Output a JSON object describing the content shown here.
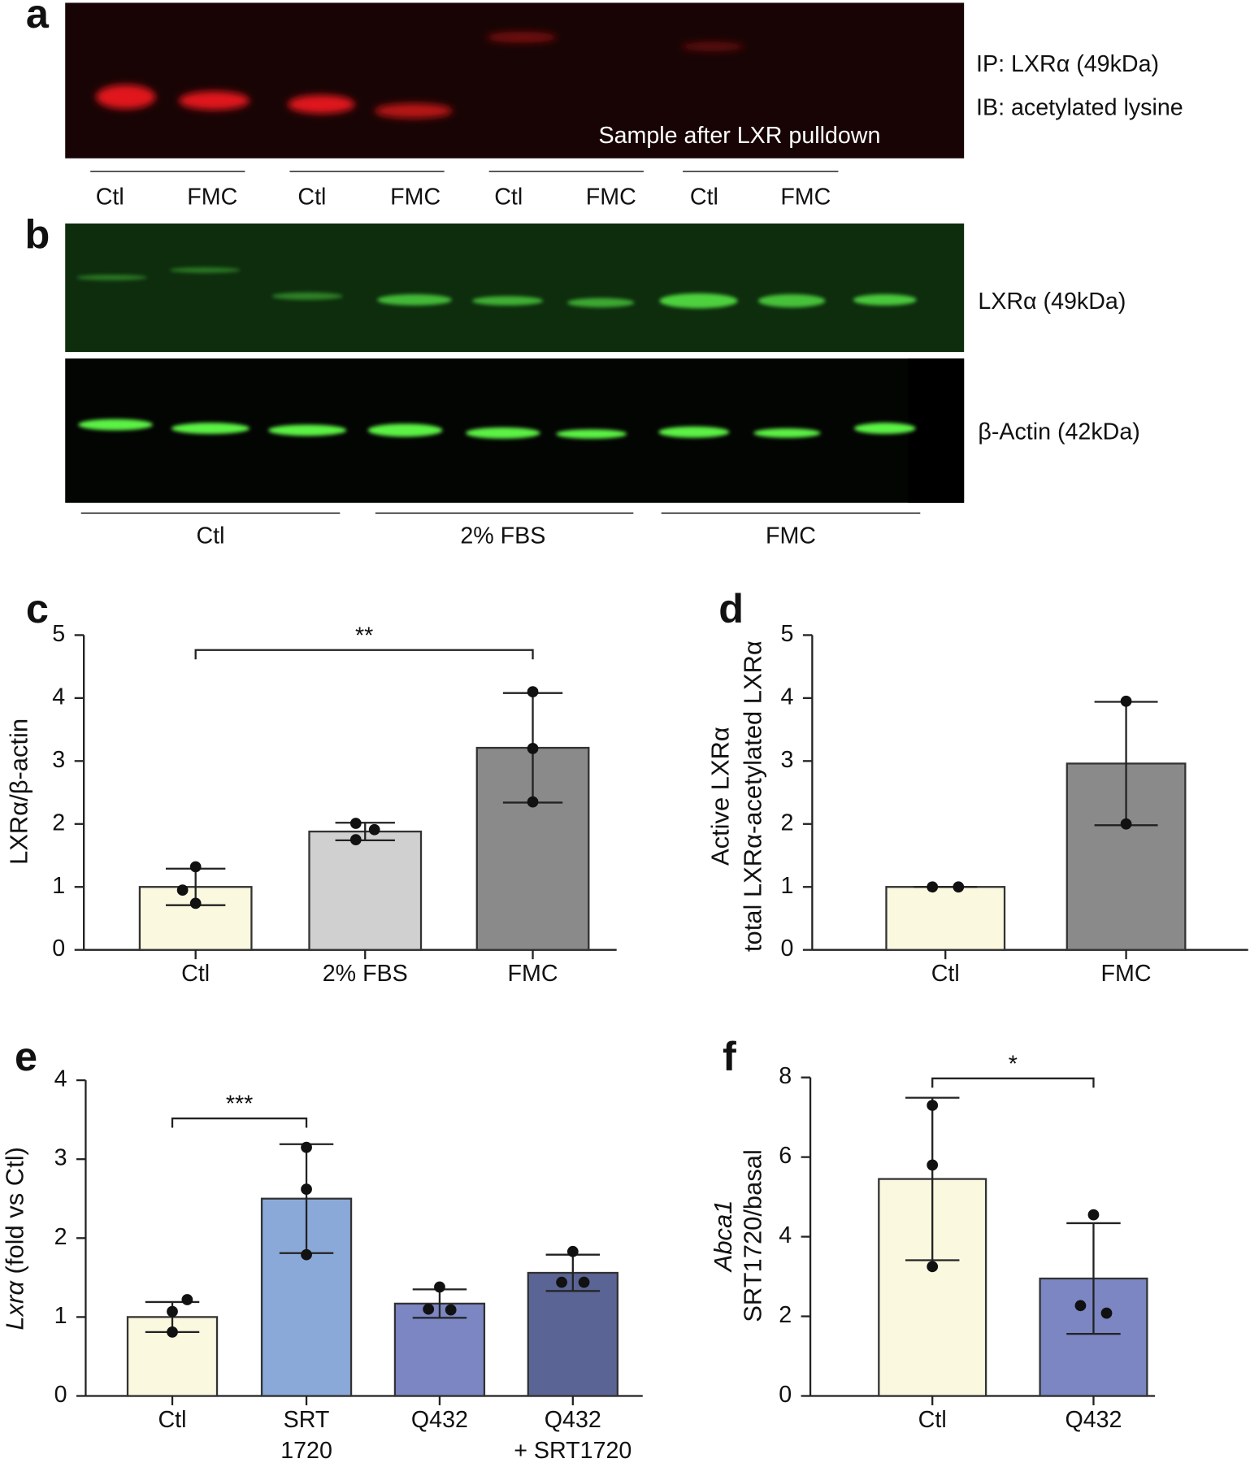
{
  "blot_a": {
    "label": "a",
    "bands": [
      "IP: LXRα (49kDa)",
      "IB: acetylated lysine"
    ],
    "note": "Sample after LXR pulldown",
    "lanes": [
      "Ctl",
      "FMC",
      "Ctl",
      "FMC",
      "Ctl",
      "FMC",
      "Ctl",
      "FMC"
    ]
  },
  "blot_b": {
    "label": "b",
    "bands": [
      "LXRα (49kDa)",
      "β-Actin (42kDa)"
    ],
    "groups": [
      "Ctl",
      "2% FBS",
      "FMC"
    ]
  },
  "chart_data": [
    {
      "type": "bar",
      "label": "c",
      "ylabel": [
        "LXRα/β-actin"
      ],
      "categories": [
        [
          "Ctl"
        ],
        [
          "2% FBS"
        ],
        [
          "FMC"
        ]
      ],
      "values": [
        1.0,
        1.88,
        3.21
      ],
      "errors": [
        0.29,
        0.14,
        0.87
      ],
      "points": [
        [
          1.32,
          0.95,
          0.74
        ],
        [
          2.01,
          1.91,
          1.75
        ],
        [
          4.1,
          3.2,
          2.35
        ]
      ],
      "colors": [
        "#fbf8e0",
        "#d0d0d0",
        "#8a8a8a"
      ],
      "ylim": [
        0,
        5
      ],
      "yticks": [
        0,
        1,
        2,
        3,
        4,
        5
      ],
      "significance": "**"
    },
    {
      "type": "bar",
      "label": "d",
      "ylabel": [
        "Active LXRα",
        "total LXRα-acetylated LXRα"
      ],
      "categories": [
        [
          "Ctl"
        ],
        [
          "FMC"
        ]
      ],
      "values": [
        1.0,
        2.96
      ],
      "errors": [
        0,
        0.98
      ],
      "points": [
        [
          1.0,
          1.0
        ],
        [
          3.95,
          2.0
        ]
      ],
      "colors": [
        "#fbf8e0",
        "#8a8a8a"
      ],
      "ylim": [
        0,
        5
      ],
      "yticks": [
        0,
        1,
        2,
        3,
        4,
        5
      ]
    },
    {
      "type": "bar",
      "label": "e",
      "ylabel": [
        "Lxrα",
        "(fold vs Ctl)"
      ],
      "categories": [
        [
          "Ctl"
        ],
        [
          "SRT",
          "1720"
        ],
        [
          "Q432"
        ],
        [
          "Q432",
          "+ SRT1720"
        ]
      ],
      "values": [
        1.0,
        2.5,
        1.17,
        1.56
      ],
      "errors": [
        0.19,
        0.69,
        0.18,
        0.23
      ],
      "points": [
        [
          1.22,
          1.07,
          0.81
        ],
        [
          3.15,
          2.62,
          1.79
        ],
        [
          1.38,
          1.1,
          1.09
        ],
        [
          1.83,
          1.44,
          1.44
        ]
      ],
      "colors": [
        "#fbf8e0",
        "#8aa9d8",
        "#7b86c2",
        "#5b6595"
      ],
      "ylim": [
        0,
        4
      ],
      "yticks": [
        0,
        1,
        2,
        3,
        4
      ],
      "significance": "***"
    },
    {
      "type": "bar",
      "label": "f",
      "ylabel": [
        "Abca1",
        "SRT1720/basal"
      ],
      "categories": [
        [
          "Ctl"
        ],
        [
          "Q432"
        ]
      ],
      "values": [
        5.45,
        2.95
      ],
      "errors": [
        2.04,
        1.39
      ],
      "points": [
        [
          7.3,
          5.8,
          3.25
        ],
        [
          4.55,
          2.27,
          2.08
        ]
      ],
      "colors": [
        "#fbf8e0",
        "#7b86c2"
      ],
      "ylim": [
        0,
        8
      ],
      "yticks": [
        0,
        2,
        4,
        6,
        8
      ],
      "significance": "*"
    }
  ]
}
